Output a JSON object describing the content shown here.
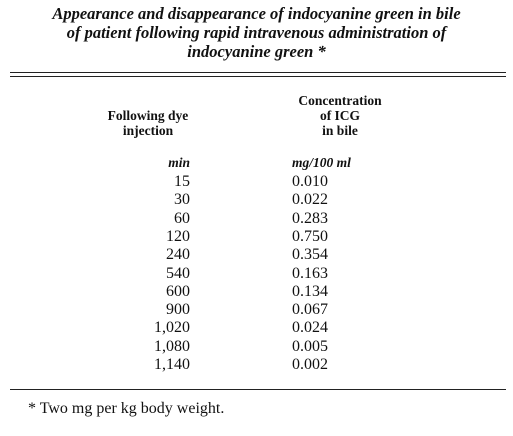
{
  "title": {
    "lines": [
      "Appearance and disappearance of indocyanine green in bile",
      "of patient following rapid intravenous administration of",
      "indocyanine green *"
    ]
  },
  "table": {
    "columns": [
      {
        "header": [
          "Following dye",
          "injection"
        ],
        "unit": "min"
      },
      {
        "header": [
          "Concentration",
          "of ICG",
          "in bile"
        ],
        "unit": "mg/100 ml"
      }
    ],
    "rows": [
      [
        "15",
        "0.010"
      ],
      [
        "30",
        "0.022"
      ],
      [
        "60",
        "0.283"
      ],
      [
        "120",
        "0.750"
      ],
      [
        "240",
        "0.354"
      ],
      [
        "540",
        "0.163"
      ],
      [
        "600",
        "0.134"
      ],
      [
        "900",
        "0.067"
      ],
      [
        "1,020",
        "0.024"
      ],
      [
        "1,080",
        "0.005"
      ],
      [
        "1,140",
        "0.002"
      ]
    ]
  },
  "footnote": "* Two mg per kg body weight."
}
